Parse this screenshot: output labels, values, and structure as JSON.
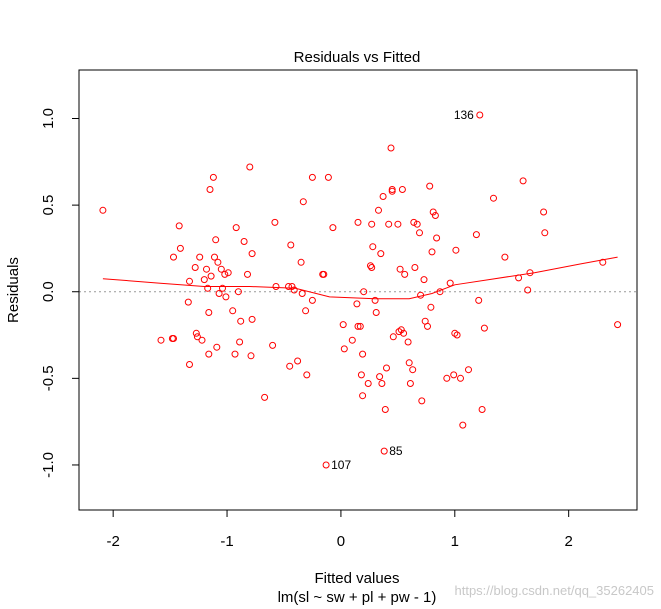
{
  "chart_data": {
    "type": "scatter",
    "title": "Residuals vs Fitted",
    "xlabel": "Fitted values",
    "subtitle": "lm(sl ~ sw + pl + pw - 1)",
    "ylabel": "Residuals",
    "xlim": [
      -2.3,
      2.6
    ],
    "ylim": [
      -1.26,
      1.28
    ],
    "xticks": [
      -2,
      -1,
      0,
      1,
      2
    ],
    "xtick_labels": [
      "-2",
      "-1",
      "0",
      "1",
      "2"
    ],
    "yticks": [
      -1.0,
      -0.5,
      0.0,
      0.5,
      1.0
    ],
    "ytick_labels": [
      "-1.0",
      "-0.5",
      "0.0",
      "0.5",
      "1.0"
    ],
    "reference_line": 0,
    "point_color": "#ff0000",
    "smooth_color": "#ff0000",
    "points": [
      [
        -2.09,
        0.47
      ],
      [
        -1.58,
        -0.28
      ],
      [
        -1.48,
        -0.27
      ],
      [
        -1.47,
        -0.27
      ],
      [
        -1.47,
        0.2
      ],
      [
        -1.42,
        0.38
      ],
      [
        -1.41,
        0.25
      ],
      [
        -1.34,
        -0.06
      ],
      [
        -1.33,
        -0.42
      ],
      [
        -1.33,
        0.06
      ],
      [
        -1.28,
        0.14
      ],
      [
        -1.27,
        -0.24
      ],
      [
        -1.26,
        -0.26
      ],
      [
        -1.24,
        0.2
      ],
      [
        -1.22,
        -0.28
      ],
      [
        -1.2,
        0.07
      ],
      [
        -1.18,
        0.13
      ],
      [
        -1.17,
        0.02
      ],
      [
        -1.16,
        -0.12
      ],
      [
        -1.16,
        -0.36
      ],
      [
        -1.15,
        0.59
      ],
      [
        -1.14,
        0.09
      ],
      [
        -1.12,
        0.66
      ],
      [
        -1.11,
        0.2
      ],
      [
        -1.1,
        0.3
      ],
      [
        -1.09,
        -0.32
      ],
      [
        -1.08,
        0.17
      ],
      [
        -1.07,
        -0.01
      ],
      [
        -1.05,
        0.13
      ],
      [
        -1.04,
        0.02
      ],
      [
        -1.02,
        0.1
      ],
      [
        -1.01,
        -0.03
      ],
      [
        -0.99,
        0.11
      ],
      [
        -0.95,
        -0.11
      ],
      [
        -0.93,
        -0.36
      ],
      [
        -0.92,
        0.37
      ],
      [
        -0.9,
        0.0
      ],
      [
        -0.89,
        -0.29
      ],
      [
        -0.88,
        -0.17
      ],
      [
        -0.85,
        0.29
      ],
      [
        -0.82,
        0.1
      ],
      [
        -0.8,
        0.72
      ],
      [
        -0.79,
        -0.37
      ],
      [
        -0.78,
        0.22
      ],
      [
        -0.78,
        -0.16
      ],
      [
        -0.67,
        -0.61
      ],
      [
        -0.6,
        -0.31
      ],
      [
        -0.58,
        0.4
      ],
      [
        -0.57,
        0.03
      ],
      [
        -0.46,
        0.03
      ],
      [
        -0.45,
        -0.43
      ],
      [
        -0.44,
        0.27
      ],
      [
        -0.43,
        0.03
      ],
      [
        -0.41,
        0.01
      ],
      [
        -0.38,
        -0.4
      ],
      [
        -0.35,
        0.17
      ],
      [
        -0.34,
        -0.01
      ],
      [
        -0.33,
        0.52
      ],
      [
        -0.31,
        -0.11
      ],
      [
        -0.3,
        -0.48
      ],
      [
        -0.25,
        0.66
      ],
      [
        -0.25,
        -0.05
      ],
      [
        -0.16,
        0.1
      ],
      [
        -0.15,
        0.1
      ],
      [
        -0.13,
        -1.0
      ],
      [
        -0.11,
        0.66
      ],
      [
        -0.07,
        0.37
      ],
      [
        0.02,
        -0.19
      ],
      [
        0.03,
        -0.33
      ],
      [
        0.1,
        -0.28
      ],
      [
        0.14,
        -0.07
      ],
      [
        0.15,
        0.4
      ],
      [
        0.15,
        -0.2
      ],
      [
        0.17,
        -0.2
      ],
      [
        0.18,
        -0.48
      ],
      [
        0.19,
        -0.36
      ],
      [
        0.19,
        -0.6
      ],
      [
        0.2,
        0.0
      ],
      [
        0.24,
        -0.53
      ],
      [
        0.26,
        0.15
      ],
      [
        0.27,
        0.39
      ],
      [
        0.27,
        0.14
      ],
      [
        0.28,
        0.26
      ],
      [
        0.3,
        -0.05
      ],
      [
        0.31,
        -0.12
      ],
      [
        0.33,
        0.47
      ],
      [
        0.34,
        -0.49
      ],
      [
        0.35,
        0.22
      ],
      [
        0.36,
        -0.53
      ],
      [
        0.37,
        0.55
      ],
      [
        0.38,
        -0.92
      ],
      [
        0.39,
        -0.68
      ],
      [
        0.4,
        -0.44
      ],
      [
        0.42,
        0.39
      ],
      [
        0.44,
        0.83
      ],
      [
        0.45,
        0.59
      ],
      [
        0.45,
        0.58
      ],
      [
        0.46,
        -0.26
      ],
      [
        0.5,
        0.39
      ],
      [
        0.51,
        -0.23
      ],
      [
        0.52,
        0.13
      ],
      [
        0.53,
        -0.22
      ],
      [
        0.54,
        0.59
      ],
      [
        0.55,
        -0.24
      ],
      [
        0.56,
        0.1
      ],
      [
        0.59,
        -0.29
      ],
      [
        0.6,
        -0.41
      ],
      [
        0.61,
        -0.53
      ],
      [
        0.63,
        -0.45
      ],
      [
        0.64,
        0.4
      ],
      [
        0.65,
        0.14
      ],
      [
        0.67,
        0.39
      ],
      [
        0.69,
        0.34
      ],
      [
        0.7,
        -0.02
      ],
      [
        0.71,
        -0.63
      ],
      [
        0.73,
        0.07
      ],
      [
        0.74,
        -0.17
      ],
      [
        0.76,
        -0.2
      ],
      [
        0.78,
        0.61
      ],
      [
        0.79,
        -0.09
      ],
      [
        0.8,
        0.23
      ],
      [
        0.81,
        0.46
      ],
      [
        0.83,
        0.44
      ],
      [
        0.84,
        0.31
      ],
      [
        0.87,
        0.0
      ],
      [
        0.93,
        -0.5
      ],
      [
        0.96,
        0.05
      ],
      [
        0.99,
        -0.48
      ],
      [
        1.0,
        -0.24
      ],
      [
        1.01,
        0.24
      ],
      [
        1.02,
        -0.25
      ],
      [
        1.05,
        -0.5
      ],
      [
        1.07,
        -0.77
      ],
      [
        1.12,
        -0.45
      ],
      [
        1.19,
        0.33
      ],
      [
        1.21,
        -0.05
      ],
      [
        1.22,
        1.02
      ],
      [
        1.24,
        -0.68
      ],
      [
        1.26,
        -0.21
      ],
      [
        1.34,
        0.54
      ],
      [
        1.44,
        0.2
      ],
      [
        1.56,
        0.08
      ],
      [
        1.6,
        0.64
      ],
      [
        1.64,
        0.01
      ],
      [
        1.66,
        0.11
      ],
      [
        1.78,
        0.46
      ],
      [
        1.79,
        0.34
      ],
      [
        2.3,
        0.17
      ],
      [
        2.43,
        -0.19
      ]
    ],
    "labeled_points": [
      {
        "label": "136",
        "x": 1.22,
        "y": 1.02
      },
      {
        "label": "107",
        "x": -0.13,
        "y": -1.0
      },
      {
        "label": "85",
        "x": 0.38,
        "y": -0.92
      }
    ],
    "smooth_line": [
      [
        -2.09,
        0.075
      ],
      [
        -1.6,
        0.05
      ],
      [
        -1.2,
        0.03
      ],
      [
        -0.8,
        0.03
      ],
      [
        -0.4,
        0.02
      ],
      [
        -0.1,
        -0.03
      ],
      [
        0.3,
        -0.04
      ],
      [
        0.6,
        -0.04
      ],
      [
        0.8,
        -0.01
      ],
      [
        1.0,
        0.04
      ],
      [
        1.3,
        0.07
      ],
      [
        1.7,
        0.11
      ],
      [
        2.1,
        0.16
      ],
      [
        2.43,
        0.2
      ]
    ]
  },
  "watermark": "https://blog.csdn.net/qq_35262405"
}
